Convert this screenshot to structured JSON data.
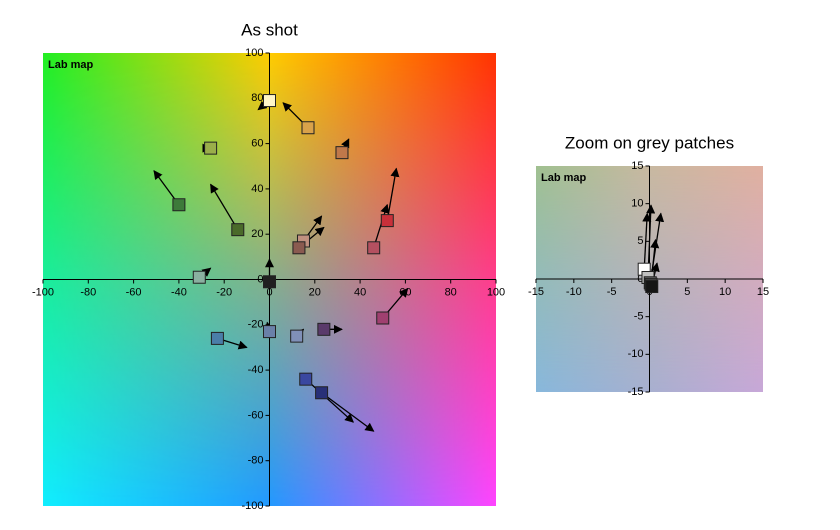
{
  "chart_data": [
    {
      "type": "scatter",
      "title": "As shot",
      "annotation": "Lab map",
      "xlim": [
        -100,
        100
      ],
      "ylim": [
        -100,
        100
      ],
      "xticks": [
        -100,
        -80,
        -60,
        -40,
        -20,
        0,
        20,
        40,
        60,
        80,
        100
      ],
      "yticks": [
        -100,
        -80,
        -60,
        -40,
        -20,
        0,
        20,
        40,
        60,
        80,
        100
      ],
      "background": [
        "#22ee22",
        "#ffcc00",
        "#ff3300",
        "#11eeff",
        "#2299ff",
        "#ff44ff"
      ],
      "points": [
        {
          "x": 0,
          "y": 79,
          "x2": -5,
          "y2": 75,
          "color": "#fff6c8"
        },
        {
          "x": 17,
          "y": 67,
          "x2": 6,
          "y2": 78,
          "color": "#d9a24a"
        },
        {
          "x": -26,
          "y": 58,
          "x2": -26,
          "y2": 58,
          "color": "#9aae4a"
        },
        {
          "x": 32,
          "y": 56,
          "x2": 35,
          "y2": 62,
          "color": "#c0784a"
        },
        {
          "x": -40,
          "y": 33,
          "x2": -51,
          "y2": 48,
          "color": "#3d7a3a"
        },
        {
          "x": -14,
          "y": 22,
          "x2": -26,
          "y2": 42,
          "color": "#4a6a2a"
        },
        {
          "x": 52,
          "y": 26,
          "x2": 56,
          "y2": 49,
          "color": "#c8303a"
        },
        {
          "x": 46,
          "y": 14,
          "x2": 52,
          "y2": 33,
          "color": "#b45060"
        },
        {
          "x": 15,
          "y": 17,
          "x2": 23,
          "y2": 28,
          "color": "#c09080"
        },
        {
          "x": 13,
          "y": 14,
          "x2": 24,
          "y2": 23,
          "color": "#8a5a50"
        },
        {
          "x": -31,
          "y": 1,
          "x2": -26,
          "y2": 5,
          "color": "#8ab0a0"
        },
        {
          "x": 0,
          "y": -1,
          "x2": 0,
          "y2": 9,
          "color": "#202020"
        },
        {
          "x": 50,
          "y": -17,
          "x2": 61,
          "y2": -4,
          "color": "#a04070"
        },
        {
          "x": -23,
          "y": -26,
          "x2": -10,
          "y2": -30,
          "color": "#4a7ea8"
        },
        {
          "x": 0,
          "y": -23,
          "x2": -1,
          "y2": -19,
          "color": "#6a80a8"
        },
        {
          "x": 12,
          "y": -25,
          "x2": 15,
          "y2": -22,
          "color": "#8090b8"
        },
        {
          "x": 24,
          "y": -22,
          "x2": 32,
          "y2": -22,
          "color": "#5a3a6a"
        },
        {
          "x": 16,
          "y": -44,
          "x2": 37,
          "y2": -63,
          "color": "#3a48a0"
        },
        {
          "x": 23,
          "y": -50,
          "x2": 46,
          "y2": -67,
          "color": "#283078"
        }
      ]
    },
    {
      "type": "scatter",
      "title": "Zoom on grey patches",
      "annotation": "Lab map",
      "xlim": [
        -15,
        15
      ],
      "ylim": [
        -15,
        15
      ],
      "xticks": [
        -15,
        -10,
        -5,
        0,
        5,
        10,
        15
      ],
      "yticks": [
        -15,
        -10,
        -5,
        0,
        5,
        10,
        15
      ],
      "background": [
        "#a0c090",
        "#c8b8a0",
        "#e0b0a0",
        "#88b8dc",
        "#a8b0d0",
        "#c8a8d8"
      ],
      "points": [
        {
          "x": -0.7,
          "y": 1.3,
          "x2": -0.3,
          "y2": 8.7,
          "color": "#ffffff"
        },
        {
          "x": -0.2,
          "y": 0.2,
          "x2": 0.2,
          "y2": 9.8,
          "color": "#c0c0c0"
        },
        {
          "x": 0.1,
          "y": -0.5,
          "x2": 1.5,
          "y2": 8.7,
          "color": "#808080"
        },
        {
          "x": 0.2,
          "y": -0.7,
          "x2": 0.8,
          "y2": 5.2,
          "color": "#404040"
        },
        {
          "x": 0.3,
          "y": -1,
          "x2": 1,
          "y2": 2.1,
          "color": "#151515"
        }
      ]
    }
  ]
}
